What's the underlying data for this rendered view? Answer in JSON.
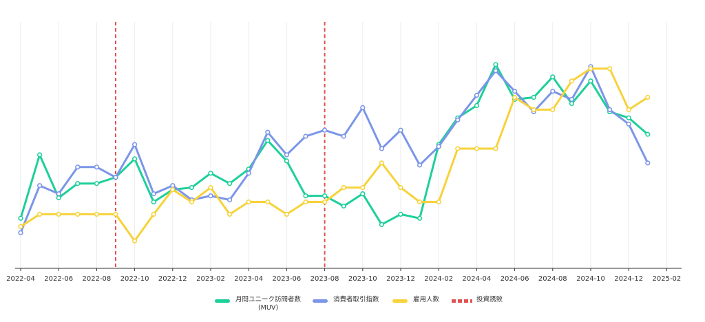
{
  "chart_data": {
    "type": "line",
    "x": [
      "2022-04",
      "2022-05",
      "2022-06",
      "2022-07",
      "2022-08",
      "2022-09",
      "2022-10",
      "2022-11",
      "2022-12",
      "2023-01",
      "2023-02",
      "2023-03",
      "2023-04",
      "2023-05",
      "2023-06",
      "2023-07",
      "2023-08",
      "2023-09",
      "2023-10",
      "2023-11",
      "2023-12",
      "2024-01",
      "2024-02",
      "2024-03",
      "2024-04",
      "2024-05",
      "2024-06",
      "2024-07",
      "2024-08",
      "2024-09",
      "2024-10",
      "2024-11",
      "2024-12",
      "2025-01"
    ],
    "x_tick_labels": [
      "2022-04",
      "2022-06",
      "2022-08",
      "2022-10",
      "2022-12",
      "2023-02",
      "2023-04",
      "2023-06",
      "2023-08",
      "2023-10",
      "2023-12",
      "2024-02",
      "2024-04",
      "2024-06",
      "2024-08",
      "2024-10",
      "2024-12",
      "2025-02"
    ],
    "x_range": [
      "2022-04",
      "2025-02"
    ],
    "ylim": [
      0,
      100
    ],
    "grid": "vertical",
    "legend_position": "bottom",
    "series": [
      {
        "name": "月間ユニーク訪問者数\n(MUV)",
        "color": "#1ecf9a",
        "marker": "circle",
        "values": [
          17,
          48,
          27,
          34,
          34,
          37,
          46,
          25,
          31,
          32,
          39,
          34,
          41,
          55,
          45,
          28,
          28,
          23,
          29,
          14,
          19,
          17,
          53,
          66,
          72,
          92,
          75,
          76,
          86,
          73,
          84,
          69,
          66,
          58
        ]
      },
      {
        "name": "消費者取引指数",
        "color": "#7b95e8",
        "marker": "circle",
        "values": [
          10,
          33,
          29,
          42,
          42,
          37,
          53,
          29,
          33,
          26,
          28,
          26,
          39,
          59,
          48,
          57,
          60,
          57,
          71,
          51,
          60,
          43,
          52,
          65,
          77,
          89,
          79,
          69,
          79,
          75,
          91,
          70,
          63,
          44
        ]
      },
      {
        "name": "雇用人数",
        "color": "#f7d23a",
        "marker": "circle",
        "values": [
          13,
          19,
          19,
          19,
          19,
          19,
          6,
          19,
          31,
          25,
          32,
          19,
          25,
          25,
          19,
          25,
          25,
          32,
          32,
          44,
          32,
          25,
          25,
          51,
          51,
          51,
          76,
          70,
          70,
          84,
          90,
          90,
          70,
          76
        ]
      },
      {
        "name": "投資誘致",
        "color": "#e05252",
        "style": "dashed",
        "type": "vline",
        "x_values": [
          "2022-09",
          "2023-08"
        ]
      }
    ]
  }
}
